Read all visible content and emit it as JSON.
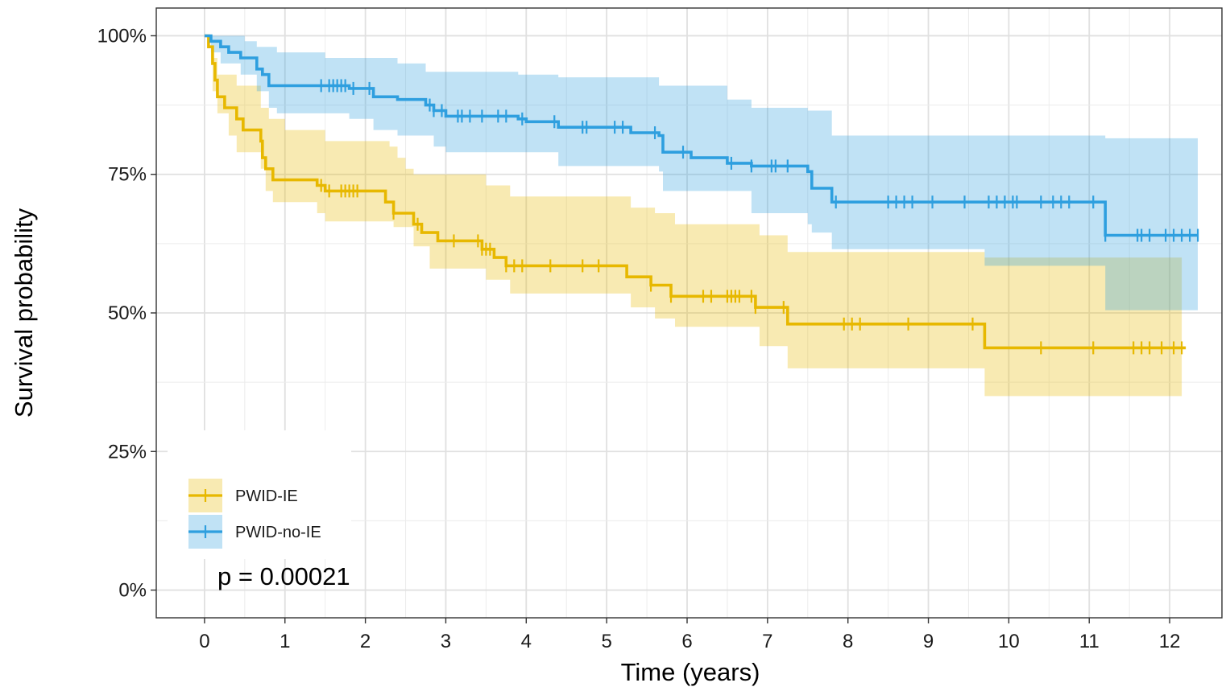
{
  "chart_data": {
    "type": "line",
    "subtype": "kaplan-meier",
    "xlabel": "Time (years)",
    "ylabel": "Survival probability",
    "xlim": [
      -0.6,
      12.65
    ],
    "ylim": [
      -0.05,
      1.05
    ],
    "x_ticks": [
      0,
      1,
      2,
      3,
      4,
      5,
      6,
      7,
      8,
      9,
      10,
      11,
      12
    ],
    "x_tick_labels": [
      "0",
      "1",
      "2",
      "3",
      "4",
      "5",
      "6",
      "7",
      "8",
      "9",
      "10",
      "11",
      "12"
    ],
    "y_ticks": [
      0,
      0.25,
      0.5,
      0.75,
      1.0
    ],
    "y_tick_labels": [
      "0%",
      "25%",
      "50%",
      "75%",
      "100%"
    ],
    "grid": true,
    "legend_position": "bottom-left",
    "annotation": "p = 0.00021",
    "series": [
      {
        "name": "PWID-IE",
        "color": "#E7B800",
        "steps": [
          [
            0,
            1.0
          ],
          [
            0.05,
            0.98
          ],
          [
            0.1,
            0.95
          ],
          [
            0.13,
            0.92
          ],
          [
            0.16,
            0.89
          ],
          [
            0.25,
            0.87
          ],
          [
            0.4,
            0.85
          ],
          [
            0.48,
            0.83
          ],
          [
            0.7,
            0.81
          ],
          [
            0.72,
            0.78
          ],
          [
            0.76,
            0.76
          ],
          [
            0.85,
            0.74
          ],
          [
            1.4,
            0.73
          ],
          [
            1.5,
            0.72
          ],
          [
            2.25,
            0.7
          ],
          [
            2.35,
            0.68
          ],
          [
            2.6,
            0.66
          ],
          [
            2.7,
            0.645
          ],
          [
            2.9,
            0.63
          ],
          [
            3.45,
            0.615
          ],
          [
            3.6,
            0.6
          ],
          [
            3.75,
            0.585
          ],
          [
            5.25,
            0.565
          ],
          [
            5.55,
            0.55
          ],
          [
            5.8,
            0.53
          ],
          [
            6.85,
            0.51
          ],
          [
            7.25,
            0.48
          ],
          [
            9.7,
            0.437
          ],
          [
            12.2,
            0.437
          ]
        ],
        "ci_upper": [
          [
            0,
            1.0
          ],
          [
            0.1,
            0.96
          ],
          [
            0.16,
            0.93
          ],
          [
            0.4,
            0.91
          ],
          [
            0.7,
            0.87
          ],
          [
            0.8,
            0.85
          ],
          [
            1.0,
            0.83
          ],
          [
            1.5,
            0.81
          ],
          [
            2.3,
            0.8
          ],
          [
            2.4,
            0.78
          ],
          [
            2.5,
            0.76
          ],
          [
            2.6,
            0.75
          ],
          [
            3.5,
            0.73
          ],
          [
            3.8,
            0.71
          ],
          [
            5.3,
            0.69
          ],
          [
            5.6,
            0.68
          ],
          [
            5.85,
            0.66
          ],
          [
            6.9,
            0.64
          ],
          [
            7.25,
            0.61
          ],
          [
            9.7,
            0.6
          ],
          [
            12.15,
            0.6
          ]
        ],
        "ci_lower": [
          [
            0,
            1.0
          ],
          [
            0.1,
            0.9
          ],
          [
            0.16,
            0.86
          ],
          [
            0.3,
            0.82
          ],
          [
            0.4,
            0.79
          ],
          [
            0.7,
            0.76
          ],
          [
            0.76,
            0.72
          ],
          [
            0.85,
            0.7
          ],
          [
            1.4,
            0.68
          ],
          [
            1.5,
            0.665
          ],
          [
            2.35,
            0.655
          ],
          [
            2.6,
            0.62
          ],
          [
            2.8,
            0.58
          ],
          [
            3.5,
            0.56
          ],
          [
            3.8,
            0.535
          ],
          [
            5.3,
            0.51
          ],
          [
            5.6,
            0.49
          ],
          [
            5.85,
            0.475
          ],
          [
            6.9,
            0.44
          ],
          [
            7.25,
            0.4
          ],
          [
            9.7,
            0.35
          ],
          [
            12.15,
            0.35
          ]
        ],
        "censor_times": [
          1.45,
          1.55,
          1.7,
          1.75,
          1.8,
          1.85,
          1.9,
          2.35,
          2.65,
          3.1,
          3.4,
          3.45,
          3.5,
          3.55,
          3.75,
          3.85,
          3.95,
          4.3,
          4.7,
          4.9,
          5.55,
          5.8,
          6.2,
          6.3,
          6.5,
          6.55,
          6.6,
          6.65,
          6.8,
          6.85,
          7.2,
          7.95,
          8.05,
          8.15,
          8.75,
          9.55,
          10.4,
          11.05,
          11.55,
          11.65,
          11.75,
          11.9,
          12.05,
          12.15
        ]
      },
      {
        "name": "PWID-no-IE",
        "color": "#2E9FDF",
        "steps": [
          [
            0,
            1.0
          ],
          [
            0.08,
            0.99
          ],
          [
            0.2,
            0.98
          ],
          [
            0.3,
            0.97
          ],
          [
            0.45,
            0.96
          ],
          [
            0.65,
            0.94
          ],
          [
            0.72,
            0.93
          ],
          [
            0.8,
            0.91
          ],
          [
            1.5,
            0.91
          ],
          [
            1.8,
            0.905
          ],
          [
            2.1,
            0.89
          ],
          [
            2.4,
            0.885
          ],
          [
            2.75,
            0.875
          ],
          [
            2.85,
            0.865
          ],
          [
            3.0,
            0.855
          ],
          [
            3.9,
            0.85
          ],
          [
            4.0,
            0.845
          ],
          [
            4.4,
            0.835
          ],
          [
            5.3,
            0.825
          ],
          [
            5.65,
            0.82
          ],
          [
            5.7,
            0.79
          ],
          [
            6.05,
            0.78
          ],
          [
            6.5,
            0.77
          ],
          [
            6.8,
            0.765
          ],
          [
            7.5,
            0.755
          ],
          [
            7.55,
            0.725
          ],
          [
            7.8,
            0.7
          ],
          [
            11.2,
            0.64
          ],
          [
            12.35,
            0.64
          ]
        ],
        "ci_upper": [
          [
            0,
            1.0
          ],
          [
            0.5,
            0.99
          ],
          [
            0.65,
            0.98
          ],
          [
            0.9,
            0.97
          ],
          [
            1.5,
            0.96
          ],
          [
            2.0,
            0.96
          ],
          [
            2.4,
            0.95
          ],
          [
            2.75,
            0.935
          ],
          [
            3.9,
            0.93
          ],
          [
            4.4,
            0.925
          ],
          [
            5.65,
            0.91
          ],
          [
            6.5,
            0.885
          ],
          [
            6.8,
            0.87
          ],
          [
            7.5,
            0.865
          ],
          [
            7.8,
            0.82
          ],
          [
            11.2,
            0.815
          ],
          [
            12.35,
            0.815
          ]
        ],
        "ci_lower": [
          [
            0,
            1.0
          ],
          [
            0.08,
            0.97
          ],
          [
            0.2,
            0.95
          ],
          [
            0.45,
            0.93
          ],
          [
            0.65,
            0.9
          ],
          [
            0.8,
            0.87
          ],
          [
            0.9,
            0.86
          ],
          [
            1.8,
            0.85
          ],
          [
            2.1,
            0.83
          ],
          [
            2.4,
            0.82
          ],
          [
            2.85,
            0.8
          ],
          [
            3.0,
            0.79
          ],
          [
            4.4,
            0.765
          ],
          [
            5.65,
            0.755
          ],
          [
            5.7,
            0.72
          ],
          [
            6.8,
            0.68
          ],
          [
            7.5,
            0.66
          ],
          [
            7.55,
            0.645
          ],
          [
            7.8,
            0.615
          ],
          [
            9.7,
            0.585
          ],
          [
            11.2,
            0.505
          ],
          [
            12.35,
            0.505
          ]
        ],
        "censor_times": [
          1.45,
          1.55,
          1.6,
          1.65,
          1.7,
          1.75,
          1.85,
          2.05,
          2.8,
          2.85,
          2.95,
          3.15,
          3.2,
          3.3,
          3.45,
          3.65,
          3.75,
          3.95,
          4.35,
          4.7,
          4.75,
          5.1,
          5.2,
          5.6,
          5.95,
          6.55,
          6.8,
          7.05,
          7.1,
          7.25,
          7.85,
          8.5,
          8.6,
          8.7,
          8.8,
          9.05,
          9.45,
          9.75,
          9.85,
          9.95,
          10.05,
          10.1,
          10.4,
          10.55,
          10.65,
          10.75,
          11.05,
          11.2,
          11.6,
          11.65,
          11.75,
          11.95,
          12.05,
          12.15,
          12.25,
          12.35
        ]
      }
    ]
  }
}
